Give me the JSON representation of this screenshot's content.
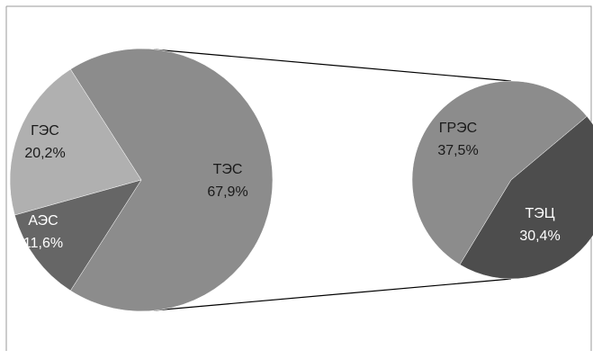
{
  "chart_data": {
    "type": "pie",
    "title": "",
    "main_pie": {
      "slices": [
        {
          "label": "ТЭС",
          "value": 67.9,
          "value_text": "67,9%",
          "color": "#8c8c8c"
        },
        {
          "label": "ГЭС",
          "value": 20.2,
          "value_text": "20,2%",
          "color": "#b0b0b0"
        },
        {
          "label": "АЭС",
          "value": 11.6,
          "value_text": "11,6%",
          "color": "#666666"
        }
      ]
    },
    "breakout_pie": {
      "of_slice": "ТЭС",
      "slices": [
        {
          "label": "ГРЭС",
          "value": 37.5,
          "value_text": "37,5%",
          "color": "#8c8c8c"
        },
        {
          "label": "ТЭЦ",
          "value": 30.4,
          "value_text": "30,4%",
          "color": "#4d4d4d"
        }
      ]
    },
    "legend": false,
    "grid": false
  }
}
